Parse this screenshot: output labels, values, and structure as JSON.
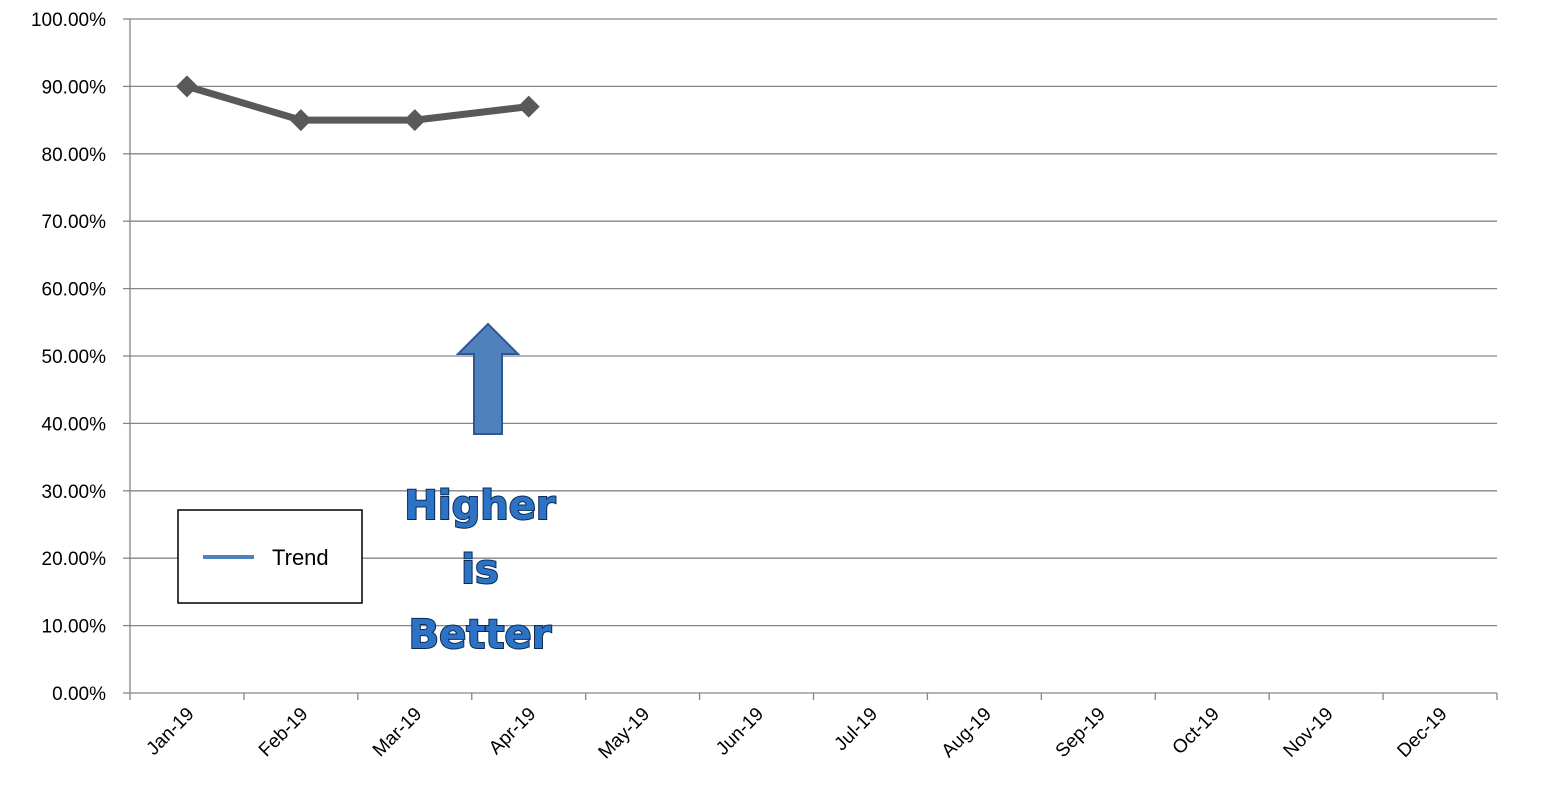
{
  "chart_data": {
    "type": "line",
    "categories": [
      "Jan-19",
      "Feb-19",
      "Mar-19",
      "Apr-19",
      "May-19",
      "Jun-19",
      "Jul-19",
      "Aug-19",
      "Sep-19",
      "Oct-19",
      "Nov-19",
      "Dec-19"
    ],
    "series": [
      {
        "name": "Trend",
        "values": [
          0.9,
          0.85,
          0.85,
          0.87,
          null,
          null,
          null,
          null,
          null,
          null,
          null,
          null
        ],
        "color": "#595959"
      }
    ],
    "yticks": [
      "0.00%",
      "10.00%",
      "20.00%",
      "30.00%",
      "40.00%",
      "50.00%",
      "60.00%",
      "70.00%",
      "80.00%",
      "90.00%",
      "100.00%"
    ],
    "ylim": [
      0,
      1
    ],
    "grid": true,
    "legend": {
      "position": "bottom-left",
      "line_color": "#4f81bd"
    },
    "annotation": {
      "lines": [
        "Higher",
        "is",
        "Better"
      ],
      "arrow_direction": "up",
      "arrow_color": "#4f81bd"
    }
  }
}
